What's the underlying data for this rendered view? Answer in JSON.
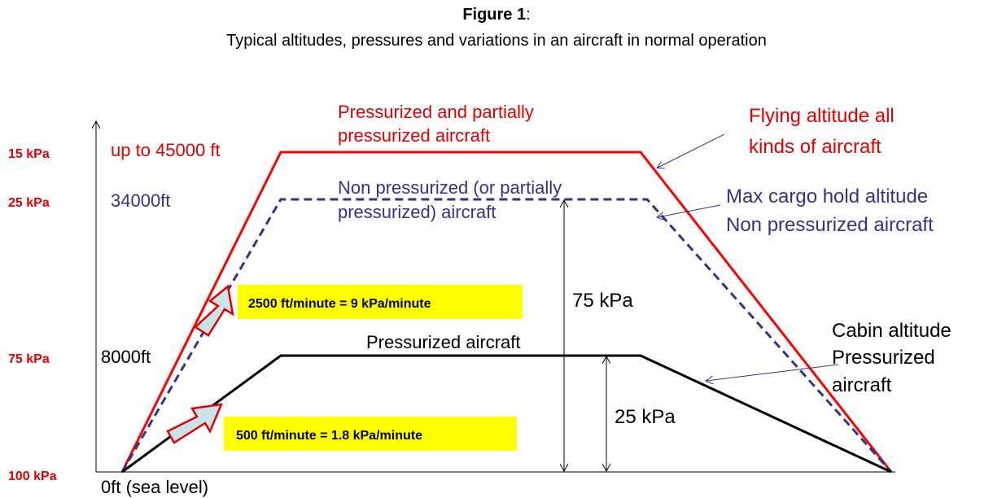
{
  "title": {
    "bold": "Figure 1",
    "suffix": ":",
    "subtitle": "Typical altitudes, pressures and variations in an aircraft in normal operation"
  },
  "pressures": [
    "15 kPa",
    "25 kPa",
    "75 kPa",
    "100 kPa"
  ],
  "altitudes": [
    "up to 45000 ft",
    "34000ft",
    "8000ft",
    "0ft (sea level)"
  ],
  "curves": {
    "pressurized_partial": [
      "Pressurized and partially",
      "pressurized aircraft"
    ],
    "non_pressurized": [
      "Non pressurized (or partially",
      "pressurized) aircraft"
    ],
    "pressurized": "Pressurized aircraft"
  },
  "callouts": {
    "flying": [
      "Flying altitude all",
      "kinds of aircraft"
    ],
    "cargo": [
      "Max cargo hold altitude",
      "Non pressurized aircraft"
    ],
    "cabin": [
      "Cabin altitude",
      "Pressurized",
      "aircraft"
    ]
  },
  "rates": [
    "2500 ft/minute = 9 kPa/minute",
    "500 ft/minute = 1.8 kPa/minute"
  ],
  "differentials": [
    "75 kPa",
    "25 kPa"
  ]
}
